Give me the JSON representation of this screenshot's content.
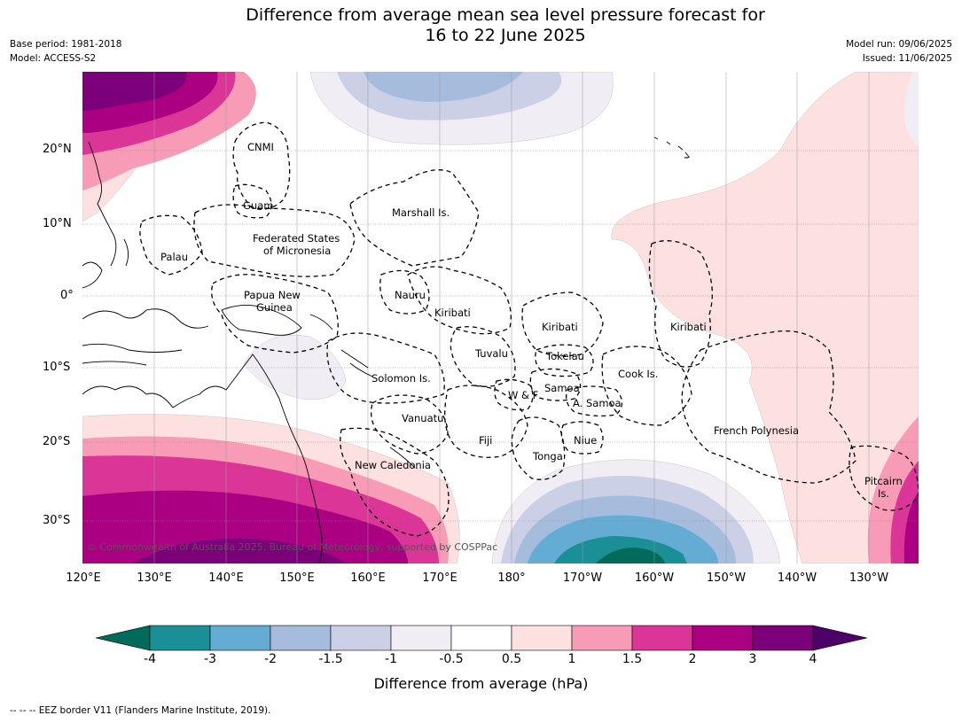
{
  "title": {
    "line1": "Difference from average mean sea level pressure forecast for",
    "line2": "16 to 22 June 2025"
  },
  "meta_left": {
    "base_period": "Base period: 1981-2018",
    "model": "Model: ACCESS-S2"
  },
  "meta_right": {
    "model_run": "Model run: 09/06/2025",
    "issued": "Issued: 11/06/2025"
  },
  "map": {
    "lon_labels": [
      "120°E",
      "130°E",
      "140°E",
      "150°E",
      "160°E",
      "170°E",
      "180°",
      "170°W",
      "160°W",
      "150°W",
      "140°W",
      "130°W"
    ],
    "lat_labels": [
      "20°N",
      "10°N",
      "0°",
      "10°S",
      "20°S",
      "30°S"
    ],
    "region_labels": {
      "cnmi": "CNMI",
      "guam": "Guam",
      "marshall": "Marshall Is.",
      "fsm1": "Federated States",
      "fsm2": "of Micronesia",
      "palau": "Palau",
      "png1": "Papua New",
      "png2": "Guinea",
      "nauru": "Nauru",
      "kiribati_w": "Kiribati",
      "kiribati_c": "Kiribati",
      "kiribati_e": "Kiribati",
      "tuvalu": "Tuvalu",
      "tokelau": "Tokelau",
      "solomon": "Solomon Is.",
      "cook": "Cook Is.",
      "samoa": "Samoa",
      "wf": "W & F",
      "asamoa": "A. Samoa",
      "vanuatu": "Vanuatu",
      "fiji": "Fiji",
      "niue": "Niue",
      "tonga": "Tonga",
      "frpoly": "French Polynesia",
      "newcal": "New Caledonia",
      "pitcairn1": "Pitcairn",
      "pitcairn2": "Is."
    },
    "copyright": "© Commonwealth of Australia 2025, Bureau of Meteorology, supported by COSPPac"
  },
  "colorbar": {
    "ticks": [
      "-4",
      "-3",
      "-2",
      "-1.5",
      "-1",
      "-0.5",
      "0.5",
      "1",
      "1.5",
      "2",
      "3",
      "4"
    ],
    "colors": [
      "#1a9096",
      "#64acd4",
      "#a6bcdc",
      "#ccd0e6",
      "#f1edf4",
      "#ffffff",
      "#fde0e0",
      "#f89bb6",
      "#db3597",
      "#ab0082",
      "#7c0079"
    ],
    "under_color": "#006b5a",
    "over_color": "#4d0068",
    "label": "Difference from average (hPa)"
  },
  "footer": "--  --  -- EEZ border V11 (Flanders Marine Institute, 2019)."
}
